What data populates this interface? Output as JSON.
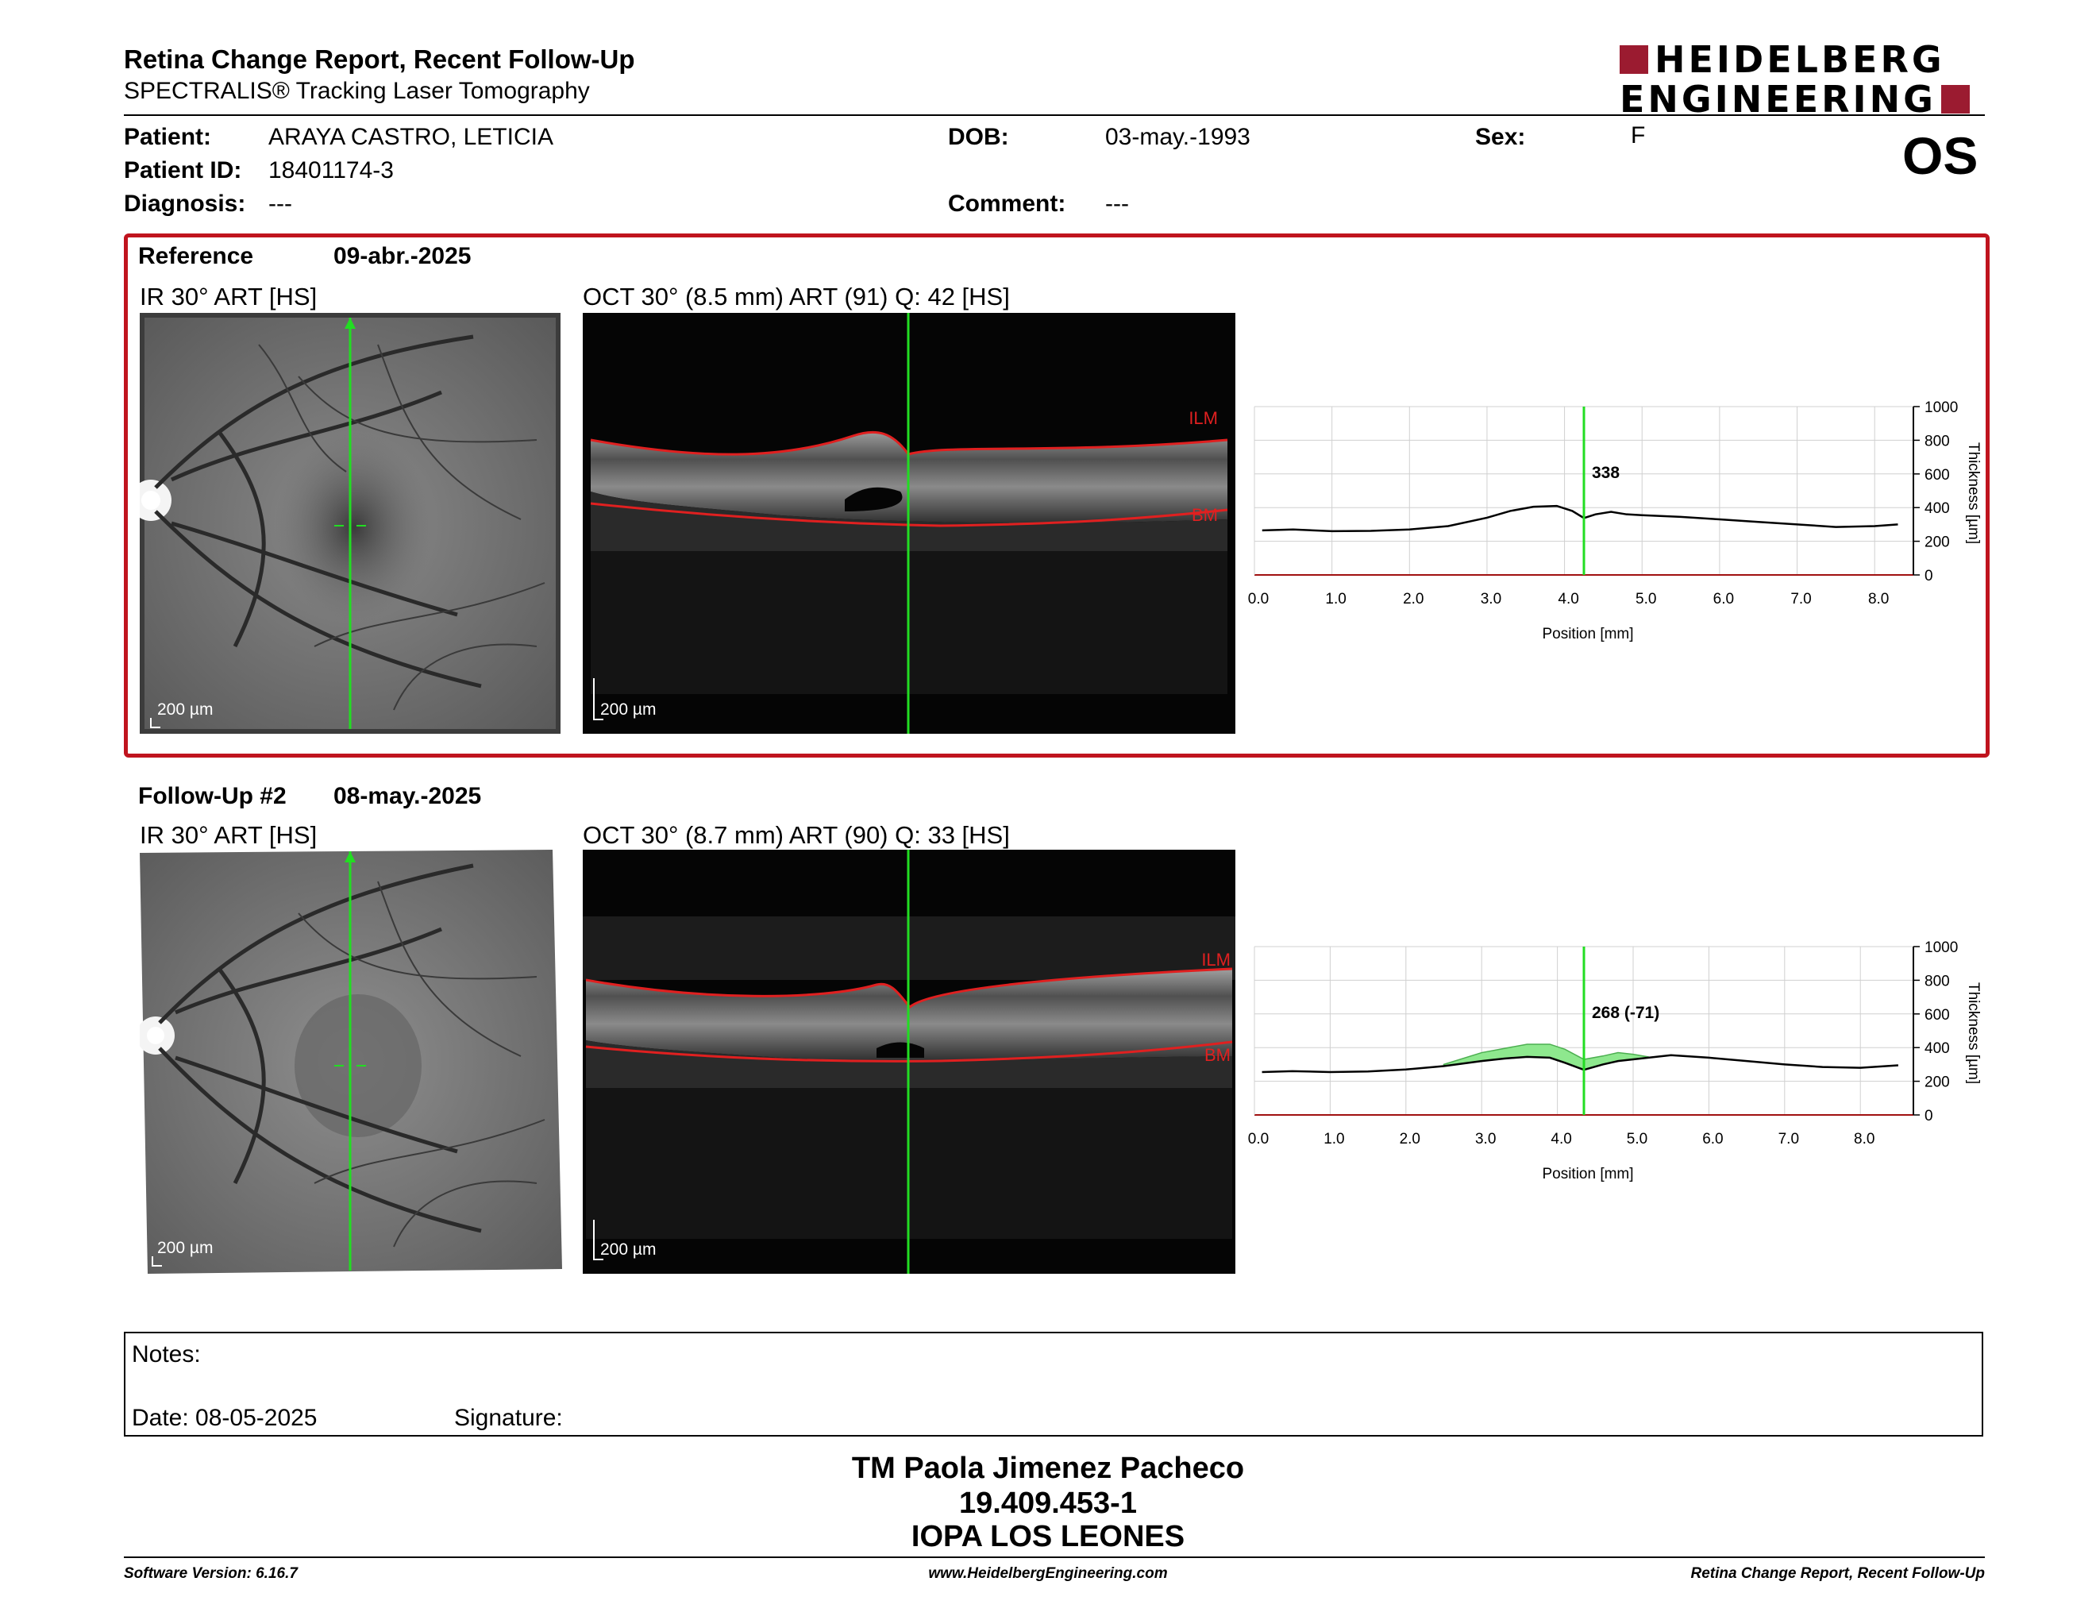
{
  "header": {
    "title": "Retina Change Report, Recent Follow-Up",
    "subtitle": "SPECTRALIS® Tracking Laser Tomography",
    "logo_line1": "HEIDELBERG",
    "logo_line2": "ENGINEERING",
    "eye": "OS"
  },
  "patient": {
    "patient_label": "Patient:",
    "patient_value": "ARAYA CASTRO, LETICIA",
    "id_label": "Patient ID:",
    "id_value": "18401174-3",
    "diagnosis_label": "Diagnosis:",
    "diagnosis_value": "---",
    "dob_label": "DOB:",
    "dob_value": "03-may.-1993",
    "comment_label": "Comment:",
    "comment_value": "---",
    "sex_label": "Sex:",
    "sex_value": "F"
  },
  "reference": {
    "label": "Reference",
    "date": "09-abr.-2025",
    "ir_title": "IR 30° ART [HS]",
    "oct_title": "OCT 30° (8.5 mm) ART (91) Q: 42 [HS]",
    "scale": "200 µm",
    "ilm": "ILM",
    "bm": "BM"
  },
  "followup": {
    "label": "Follow-Up #2",
    "date": "08-may.-2025",
    "ir_title": "IR 30° ART [HS]",
    "oct_title": "OCT 30° (8.7 mm) ART (90) Q: 33 [HS]",
    "scale": "200 µm",
    "ilm": "ILM",
    "bm": "BM"
  },
  "chart_data": [
    {
      "type": "line",
      "xlabel": "Position [mm]",
      "ylabel": "Thickness [µm]",
      "xlim": [
        0,
        8.5
      ],
      "ylim": [
        0,
        1000
      ],
      "xticks": [
        "0.0",
        "1.0",
        "2.0",
        "3.0",
        "4.0",
        "5.0",
        "6.0",
        "7.0",
        "8.0"
      ],
      "yticks": [
        "0",
        "200",
        "400",
        "600",
        "800",
        "1000"
      ],
      "grid": true,
      "cursor_x": 4.25,
      "cursor_label": "338",
      "series": [
        {
          "x": [
            0.1,
            0.5,
            1.0,
            1.5,
            2.0,
            2.5,
            3.0,
            3.3,
            3.6,
            3.9,
            4.1,
            4.25,
            4.4,
            4.6,
            4.8,
            5.0,
            5.5,
            6.0,
            6.5,
            7.0,
            7.5,
            8.0,
            8.3
          ],
          "y": [
            265,
            270,
            260,
            262,
            270,
            290,
            340,
            380,
            405,
            410,
            380,
            338,
            360,
            375,
            360,
            355,
            345,
            330,
            315,
            300,
            285,
            290,
            300
          ]
        }
      ],
      "colors": {
        "line": "#000000",
        "cursor": "#22dd22"
      }
    },
    {
      "type": "area",
      "xlabel": "Position [mm]",
      "ylabel": "Thickness [µm]",
      "xlim": [
        0,
        8.7
      ],
      "ylim": [
        0,
        1000
      ],
      "xticks": [
        "0.0",
        "1.0",
        "2.0",
        "3.0",
        "4.0",
        "5.0",
        "6.0",
        "7.0",
        "8.0"
      ],
      "yticks": [
        "0",
        "200",
        "400",
        "600",
        "800",
        "1000"
      ],
      "grid": true,
      "cursor_x": 4.35,
      "cursor_label": "268 (-71)",
      "series": [
        {
          "x": [
            0.1,
            0.5,
            1.0,
            1.5,
            2.0,
            2.5,
            3.0,
            3.3,
            3.6,
            3.9,
            4.1,
            4.35,
            4.6,
            4.8,
            5.0,
            5.5,
            6.0,
            6.5,
            7.0,
            7.5,
            8.0,
            8.5
          ],
          "y": [
            255,
            260,
            255,
            258,
            270,
            290,
            320,
            335,
            345,
            340,
            310,
            268,
            300,
            320,
            330,
            355,
            340,
            320,
            300,
            285,
            280,
            295
          ]
        },
        {
          "x": [
            2.5,
            3.0,
            3.3,
            3.6,
            3.9,
            4.1,
            4.35,
            4.6,
            4.8,
            5.0,
            5.2
          ],
          "y": [
            300,
            370,
            395,
            420,
            420,
            390,
            330,
            350,
            370,
            360,
            345
          ]
        }
      ],
      "colors": {
        "line": "#000000",
        "fill": "#8ee88e",
        "cursor": "#22dd22"
      }
    }
  ],
  "notes": {
    "label": "Notes:",
    "date_label": "Date: 08-05-2025",
    "signature_label": "Signature:"
  },
  "signer": {
    "name": "TM Paola Jimenez Pacheco",
    "id": "19.409.453-1",
    "org": "IOPA LOS LEONES"
  },
  "footer": {
    "version": "Software Version: 6.16.7",
    "website": "www.HeidelbergEngineering.com",
    "report": "Retina Change Report, Recent Follow-Up"
  }
}
